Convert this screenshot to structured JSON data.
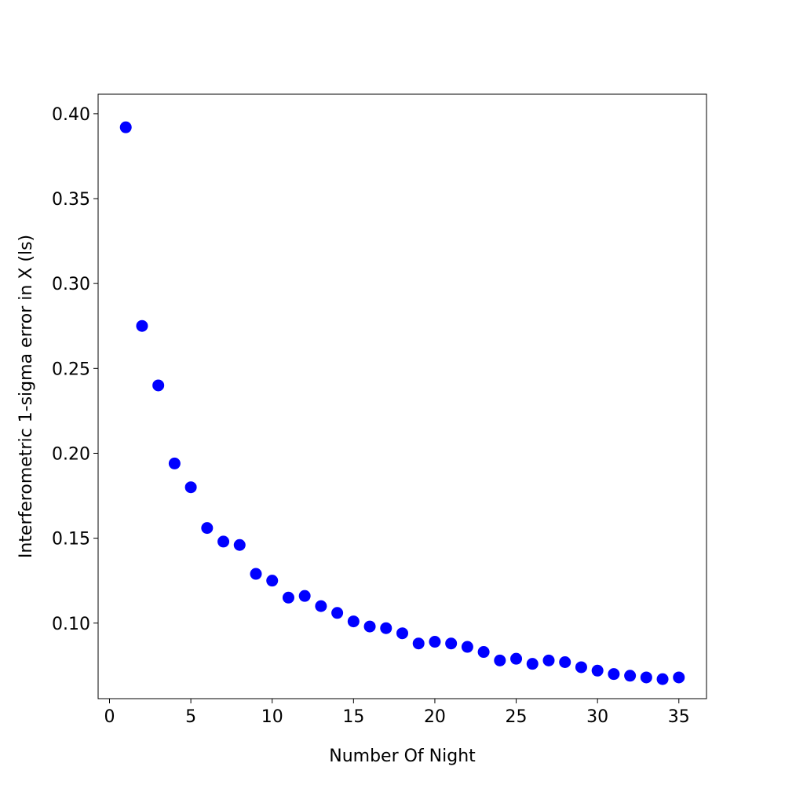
{
  "chart_data": {
    "type": "scatter",
    "title": "",
    "xlabel": "Number Of Night",
    "ylabel": "Interferometric 1-sigma error in X (ls)",
    "xlim": [
      -0.7,
      36.7
    ],
    "ylim": [
      0.0555,
      0.4115
    ],
    "x_ticks": [
      0,
      5,
      10,
      15,
      20,
      25,
      30,
      35
    ],
    "x_tick_labels": [
      "0",
      "5",
      "10",
      "15",
      "20",
      "25",
      "30",
      "35"
    ],
    "y_ticks": [
      0.1,
      0.15,
      0.2,
      0.25,
      0.3,
      0.35,
      0.4
    ],
    "y_tick_labels": [
      "0.10",
      "0.15",
      "0.20",
      "0.25",
      "0.30",
      "0.35",
      "0.40"
    ],
    "grid": false,
    "legend": "none",
    "marker_color": "#0000ff",
    "series": [
      {
        "x": [
          1,
          2,
          3,
          4,
          5,
          6,
          7,
          8,
          9,
          10,
          11,
          12,
          13,
          14,
          15,
          16,
          17,
          18,
          19,
          20,
          21,
          22,
          23,
          24,
          25,
          26,
          27,
          28,
          29,
          30,
          31,
          32,
          33,
          34,
          35
        ],
        "y": [
          0.392,
          0.275,
          0.24,
          0.194,
          0.18,
          0.156,
          0.148,
          0.146,
          0.129,
          0.125,
          0.115,
          0.116,
          0.11,
          0.106,
          0.101,
          0.098,
          0.097,
          0.094,
          0.088,
          0.089,
          0.088,
          0.086,
          0.083,
          0.078,
          0.079,
          0.076,
          0.078,
          0.077,
          0.074,
          0.072,
          0.07,
          0.069,
          0.068,
          0.067,
          0.068
        ]
      }
    ]
  }
}
